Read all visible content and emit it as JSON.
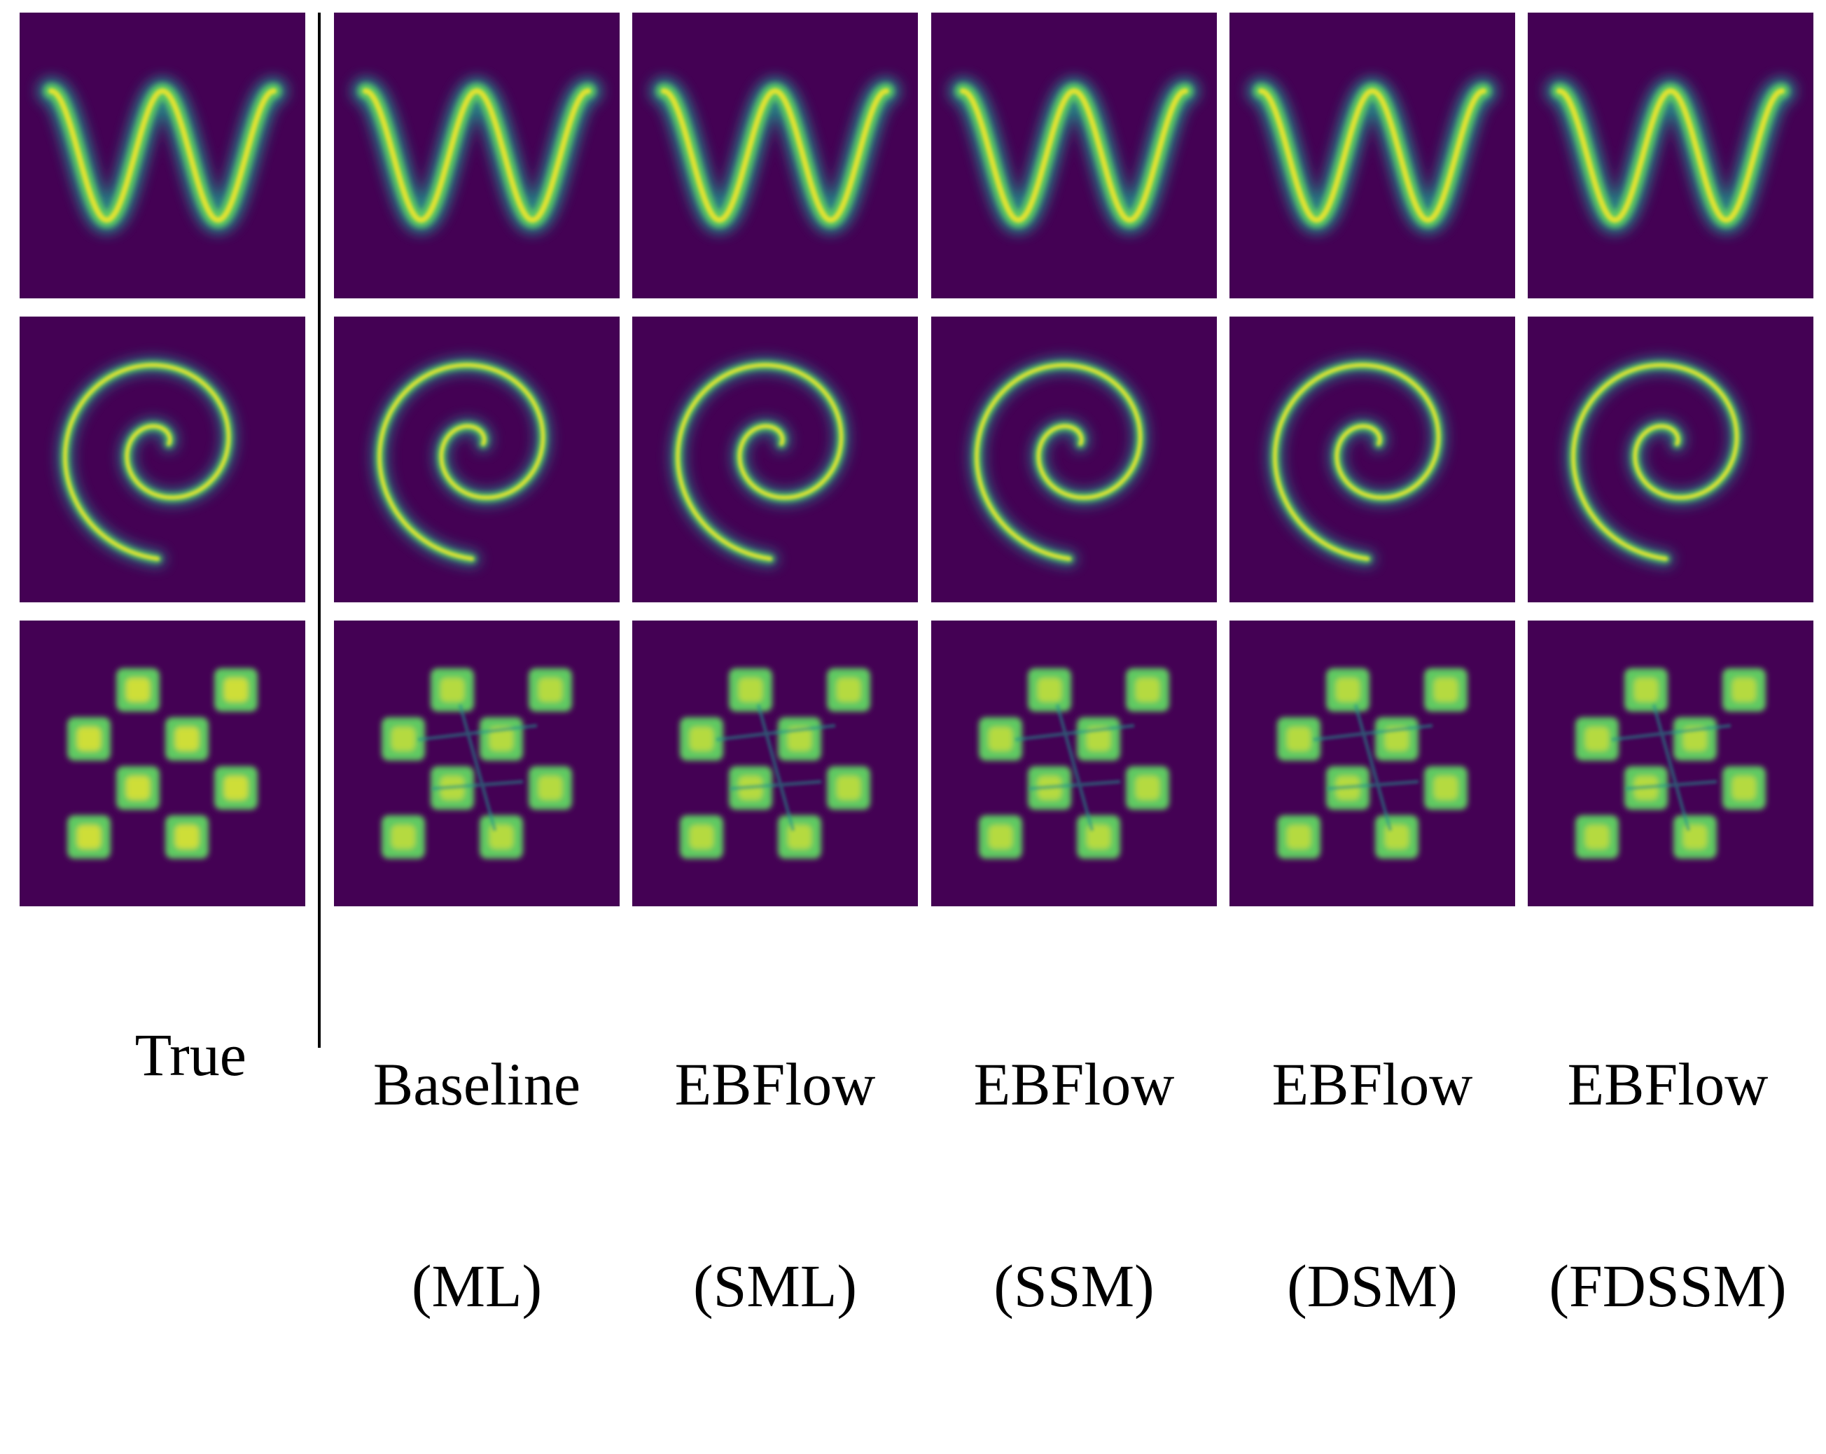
{
  "colors": {
    "background": "#440154",
    "low": "#21918c",
    "mid": "#5ec962",
    "high": "#fde725"
  },
  "columns": [
    {
      "id": "true",
      "label_line1": "True",
      "label_line2": ""
    },
    {
      "id": "baseline-ml",
      "label_line1": "Baseline",
      "label_line2": "(ML)"
    },
    {
      "id": "ebflow-sml",
      "label_line1": "EBFlow",
      "label_line2": "(SML)"
    },
    {
      "id": "ebflow-ssm",
      "label_line1": "EBFlow",
      "label_line2": "(SSM)"
    },
    {
      "id": "ebflow-dsm",
      "label_line1": "EBFlow",
      "label_line2": "(DSM)"
    },
    {
      "id": "ebflow-fdssm",
      "label_line1": "EBFlow",
      "label_line2": "(FDSSM)"
    }
  ],
  "rows": [
    {
      "id": "sine",
      "density": "sine-wave"
    },
    {
      "id": "swirl",
      "density": "spiral"
    },
    {
      "id": "checkerboard",
      "density": "checkerboard"
    }
  ]
}
